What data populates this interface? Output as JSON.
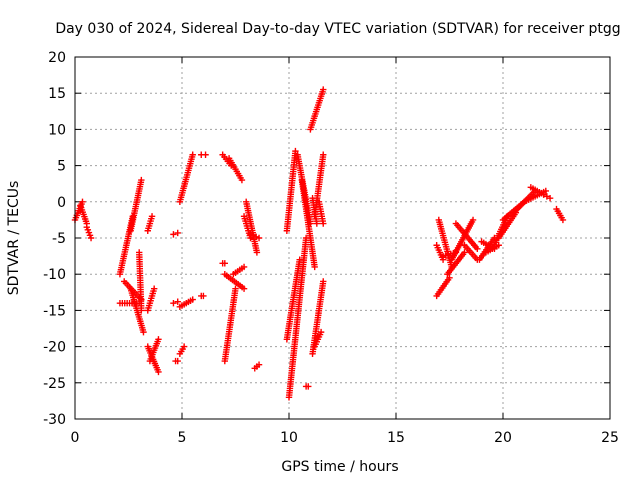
{
  "chart_data": {
    "type": "scatter",
    "title": "Day 030 of 2024, Sidereal Day-to-day VTEC variation (SDTVAR) for receiver ptgg",
    "xlabel": "GPS time / hours",
    "ylabel": "SDTVAR / TECUs",
    "xlim": [
      0,
      25
    ],
    "ylim": [
      -30,
      20
    ],
    "xticks": [
      "0",
      "5",
      "10",
      "15",
      "20",
      "25"
    ],
    "yticks": [
      "-30",
      "-25",
      "-20",
      "-15",
      "-10",
      "-5",
      "0",
      "5",
      "10",
      "15",
      "20"
    ],
    "grid": true,
    "legend": "none",
    "marker": "plus",
    "color": "#ff0000",
    "tracks": [
      {
        "x": [
          0.0,
          0.35
        ],
        "y": [
          -2.5,
          0.0
        ]
      },
      {
        "x": [
          0.25,
          0.55
        ],
        "y": [
          -0.5,
          -3.0
        ]
      },
      {
        "x": [
          0.55,
          0.75
        ],
        "y": [
          -3.5,
          -5.0
        ]
      },
      {
        "x": [
          2.1,
          2.7
        ],
        "y": [
          -10.0,
          -2.0
        ]
      },
      {
        "x": [
          2.1,
          3.0
        ],
        "y": [
          -14.0,
          -14.0
        ]
      },
      {
        "x": [
          2.3,
          3.1
        ],
        "y": [
          -11.0,
          -13.5
        ]
      },
      {
        "x": [
          2.6,
          3.1
        ],
        "y": [
          -4.0,
          3.0
        ]
      },
      {
        "x": [
          2.6,
          3.2
        ],
        "y": [
          -12.0,
          -18.0
        ]
      },
      {
        "x": [
          3.4,
          3.7
        ],
        "y": [
          -15.0,
          -12.0
        ]
      },
      {
        "x": [
          3.4,
          3.6
        ],
        "y": [
          -4.0,
          -2.0
        ]
      },
      {
        "x": [
          3.4,
          3.9
        ],
        "y": [
          -20.0,
          -23.5
        ]
      },
      {
        "x": [
          3.5,
          3.9
        ],
        "y": [
          -22.0,
          -19.0
        ]
      },
      {
        "x": [
          3.0,
          3.1
        ],
        "y": [
          -7.0,
          -15.0
        ]
      },
      {
        "x": [
          4.6,
          4.8
        ],
        "y": [
          -4.5,
          -4.3
        ]
      },
      {
        "x": [
          4.6,
          4.8
        ],
        "y": [
          -14.0,
          -13.8
        ]
      },
      {
        "x": [
          4.7,
          4.8
        ],
        "y": [
          -22.0,
          -22.0
        ]
      },
      {
        "x": [
          4.9,
          5.5
        ],
        "y": [
          0.0,
          6.5
        ]
      },
      {
        "x": [
          4.9,
          5.5
        ],
        "y": [
          -14.5,
          -13.5
        ]
      },
      {
        "x": [
          4.9,
          5.1
        ],
        "y": [
          -21.0,
          -20.0
        ]
      },
      {
        "x": [
          5.9,
          6.1
        ],
        "y": [
          6.5,
          6.5
        ]
      },
      {
        "x": [
          5.9,
          6.0
        ],
        "y": [
          -13.0,
          -13.0
        ]
      },
      {
        "x": [
          6.9,
          7.0
        ],
        "y": [
          -8.5,
          -8.5
        ]
      },
      {
        "x": [
          6.9,
          7.3
        ],
        "y": [
          6.5,
          5.0
        ]
      },
      {
        "x": [
          7.0,
          7.5
        ],
        "y": [
          -22.0,
          -12.0
        ]
      },
      {
        "x": [
          7.0,
          7.9
        ],
        "y": [
          -10.0,
          -12.0
        ]
      },
      {
        "x": [
          7.2,
          7.8
        ],
        "y": [
          6.0,
          3.0
        ]
      },
      {
        "x": [
          7.4,
          7.9
        ],
        "y": [
          -10.0,
          -9.0
        ]
      },
      {
        "x": [
          7.9,
          8.2
        ],
        "y": [
          -2.0,
          -5.0
        ]
      },
      {
        "x": [
          8.0,
          8.5
        ],
        "y": [
          0.0,
          -7.0
        ]
      },
      {
        "x": [
          8.2,
          8.6
        ],
        "y": [
          -4.5,
          -5.0
        ]
      },
      {
        "x": [
          8.4,
          8.6
        ],
        "y": [
          -23.0,
          -22.5
        ]
      },
      {
        "x": [
          9.9,
          10.3
        ],
        "y": [
          -4.0,
          7.0
        ]
      },
      {
        "x": [
          9.9,
          10.5
        ],
        "y": [
          -19.0,
          -8.0
        ]
      },
      {
        "x": [
          10.0,
          10.8
        ],
        "y": [
          -27.0,
          -5.0
        ]
      },
      {
        "x": [
          10.4,
          11.0
        ],
        "y": [
          6.5,
          -3.0
        ]
      },
      {
        "x": [
          10.6,
          11.2
        ],
        "y": [
          3.0,
          -9.0
        ]
      },
      {
        "x": [
          10.8,
          10.9
        ],
        "y": [
          -25.5,
          -25.5
        ]
      },
      {
        "x": [
          11.0,
          11.6
        ],
        "y": [
          10.0,
          15.5
        ]
      },
      {
        "x": [
          11.1,
          11.6
        ],
        "y": [
          -21.0,
          -11.0
        ]
      },
      {
        "x": [
          11.1,
          11.3
        ],
        "y": [
          0.5,
          -3.0
        ]
      },
      {
        "x": [
          11.2,
          11.5
        ],
        "y": [
          -20.0,
          -18.0
        ]
      },
      {
        "x": [
          11.2,
          11.6
        ],
        "y": [
          -2.0,
          6.5
        ]
      },
      {
        "x": [
          11.4,
          11.6
        ],
        "y": [
          0.0,
          -3.0
        ]
      },
      {
        "x": [
          16.9,
          17.5
        ],
        "y": [
          -13.0,
          -10.5
        ]
      },
      {
        "x": [
          16.9,
          17.2
        ],
        "y": [
          -6.0,
          -8.0
        ]
      },
      {
        "x": [
          17.0,
          17.6
        ],
        "y": [
          -2.5,
          -9.0
        ]
      },
      {
        "x": [
          17.2,
          17.8
        ],
        "y": [
          -7.5,
          -7.0
        ]
      },
      {
        "x": [
          17.4,
          18.2
        ],
        "y": [
          -10.0,
          -7.0
        ]
      },
      {
        "x": [
          17.6,
          18.6
        ],
        "y": [
          -8.0,
          -2.5
        ]
      },
      {
        "x": [
          17.8,
          18.8
        ],
        "y": [
          -3.0,
          -6.5
        ]
      },
      {
        "x": [
          18.2,
          18.8
        ],
        "y": [
          -6.0,
          -8.0
        ]
      },
      {
        "x": [
          18.9,
          19.6
        ],
        "y": [
          -8.0,
          -5.0
        ]
      },
      {
        "x": [
          19.0,
          19.6
        ],
        "y": [
          -5.5,
          -6.5
        ]
      },
      {
        "x": [
          19.2,
          19.8
        ],
        "y": [
          -7.0,
          -6.0
        ]
      },
      {
        "x": [
          19.5,
          20.2
        ],
        "y": [
          -6.5,
          -2.0
        ]
      },
      {
        "x": [
          19.8,
          20.6
        ],
        "y": [
          -5.0,
          -1.5
        ]
      },
      {
        "x": [
          20.0,
          21.0
        ],
        "y": [
          -2.5,
          0.0
        ]
      },
      {
        "x": [
          20.5,
          21.5
        ],
        "y": [
          -1.5,
          1.5
        ]
      },
      {
        "x": [
          21.0,
          22.0
        ],
        "y": [
          0.0,
          1.5
        ]
      },
      {
        "x": [
          21.3,
          21.9
        ],
        "y": [
          2.0,
          1.0
        ]
      },
      {
        "x": [
          21.9,
          22.2
        ],
        "y": [
          1.0,
          0.5
        ]
      },
      {
        "x": [
          22.5,
          22.8
        ],
        "y": [
          -1.0,
          -2.5
        ]
      }
    ]
  }
}
